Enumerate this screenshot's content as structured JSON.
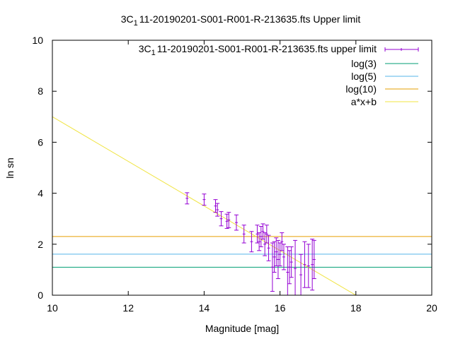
{
  "chart_data": {
    "type": "scatter",
    "title_main": "3C",
    "title_sub": "1",
    "title_rest": "11-20190201-S001-R001-R-213635.fts Upper limit",
    "xlabel": "Magnitude [mag]",
    "ylabel": "ln sn",
    "xlim": [
      10,
      20
    ],
    "ylim": [
      0,
      10
    ],
    "x_ticks": [
      "10",
      "12",
      "14",
      "16",
      "18",
      "20"
    ],
    "y_ticks": [
      "0",
      "2",
      "4",
      "6",
      "8",
      "10"
    ],
    "grid": false,
    "legend_position": "top-right",
    "series": [
      {
        "name_main": "3C",
        "name_sub": "1",
        "name_rest": "11-20190201-S001-R001-R-213635.fts upper limit",
        "kind": "errorbars",
        "color": "#9400d3",
        "points": [
          {
            "x": 13.55,
            "y": 3.8,
            "err": 0.22
          },
          {
            "x": 14.0,
            "y": 3.75,
            "err": 0.22
          },
          {
            "x": 14.3,
            "y": 3.5,
            "err": 0.25
          },
          {
            "x": 14.35,
            "y": 3.35,
            "err": 0.25
          },
          {
            "x": 14.45,
            "y": 3.0,
            "err": 0.28
          },
          {
            "x": 14.6,
            "y": 2.9,
            "err": 0.28
          },
          {
            "x": 14.65,
            "y": 2.95,
            "err": 0.3
          },
          {
            "x": 14.85,
            "y": 2.85,
            "err": 0.3
          },
          {
            "x": 15.05,
            "y": 2.4,
            "err": 0.35
          },
          {
            "x": 15.25,
            "y": 2.1,
            "err": 0.4
          },
          {
            "x": 15.4,
            "y": 2.4,
            "err": 0.35
          },
          {
            "x": 15.45,
            "y": 2.1,
            "err": 0.35
          },
          {
            "x": 15.5,
            "y": 2.3,
            "err": 0.4
          },
          {
            "x": 15.55,
            "y": 2.5,
            "err": 0.3
          },
          {
            "x": 15.6,
            "y": 2.0,
            "err": 0.45
          },
          {
            "x": 15.65,
            "y": 2.4,
            "err": 0.35
          },
          {
            "x": 15.7,
            "y": 1.85,
            "err": 0.5
          },
          {
            "x": 15.8,
            "y": 1.1,
            "err": 0.95
          },
          {
            "x": 15.85,
            "y": 1.5,
            "err": 0.6
          },
          {
            "x": 15.9,
            "y": 1.7,
            "err": 0.55
          },
          {
            "x": 15.95,
            "y": 1.4,
            "err": 0.75
          },
          {
            "x": 16.0,
            "y": 1.6,
            "err": 0.45
          },
          {
            "x": 16.05,
            "y": 2.1,
            "err": 0.35
          },
          {
            "x": 16.1,
            "y": 1.5,
            "err": 0.5
          },
          {
            "x": 16.2,
            "y": 0.9,
            "err": 1.0
          },
          {
            "x": 16.25,
            "y": 1.1,
            "err": 0.65
          },
          {
            "x": 16.3,
            "y": 1.3,
            "err": 0.6
          },
          {
            "x": 16.4,
            "y": 1.05,
            "err": 1.1
          },
          {
            "x": 16.55,
            "y": 0.8,
            "err": 0.8
          },
          {
            "x": 16.65,
            "y": 1.2,
            "err": 0.9
          },
          {
            "x": 16.75,
            "y": 1.15,
            "err": 0.85
          },
          {
            "x": 16.85,
            "y": 1.2,
            "err": 1.0
          },
          {
            "x": 16.9,
            "y": 1.4,
            "err": 0.75
          }
        ]
      },
      {
        "name": "log(3)",
        "kind": "hline",
        "y": 1.0986,
        "color": "#009e73"
      },
      {
        "name": "log(5)",
        "kind": "hline",
        "y": 1.6094,
        "color": "#56b4e9"
      },
      {
        "name": "log(10)",
        "kind": "hline",
        "y": 2.3026,
        "color": "#e69f00"
      },
      {
        "name": "a*x+b",
        "kind": "line",
        "a": -0.875,
        "b": 15.75,
        "color": "#f0e442"
      }
    ]
  }
}
